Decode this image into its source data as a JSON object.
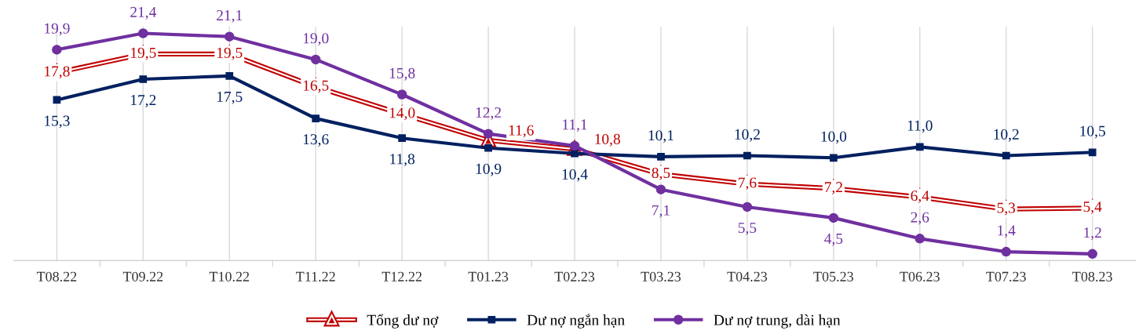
{
  "chart_data": {
    "type": "line",
    "categories": [
      "T08.22",
      "T09.22",
      "T10.22",
      "T11.22",
      "T12.22",
      "T01.23",
      "T02.23",
      "T03.23",
      "T04.23",
      "T05.23",
      "T06.23",
      "T07.23",
      "T08.23"
    ],
    "series": [
      {
        "name": "Tổng dư nợ",
        "color": "#c00000",
        "marker": "triangle",
        "values": [
          17.8,
          19.5,
          19.5,
          16.5,
          14.0,
          11.6,
          10.8,
          8.5,
          7.6,
          7.2,
          6.4,
          5.3,
          5.4
        ],
        "value_labels": [
          "17,8",
          "19,5",
          "19,5",
          "16,5",
          "14,0",
          "11,6",
          "10,8",
          "8,5",
          "7,6",
          "7,2",
          "6,4",
          "5,3",
          "5,4"
        ]
      },
      {
        "name": "Dư nợ ngắn hạn",
        "color": "#002060",
        "marker": "square",
        "values": [
          15.3,
          17.2,
          17.5,
          13.6,
          11.8,
          10.9,
          10.4,
          10.1,
          10.2,
          10.0,
          11.0,
          10.2,
          10.5
        ],
        "value_labels": [
          "15,3",
          "17,2",
          "17,5",
          "13,6",
          "11,8",
          "10,9",
          "10,4",
          "10,1",
          "10,2",
          "10,0",
          "11,0",
          "10,2",
          "10,5"
        ]
      },
      {
        "name": "Dư nợ trung, dài hạn",
        "color": "#7030a0",
        "marker": "circle",
        "values": [
          19.9,
          21.4,
          21.1,
          19.0,
          15.8,
          12.2,
          11.1,
          7.1,
          5.5,
          4.5,
          2.6,
          1.4,
          1.2
        ],
        "value_labels": [
          "19,9",
          "21,4",
          "21,1",
          "19,0",
          "15,8",
          "12,2",
          "11,1",
          "7,1",
          "5,5",
          "4,5",
          "2,6",
          "1,4",
          "1,2"
        ]
      }
    ],
    "grid": "x",
    "legend": "bottom",
    "tick_labels": "x"
  }
}
